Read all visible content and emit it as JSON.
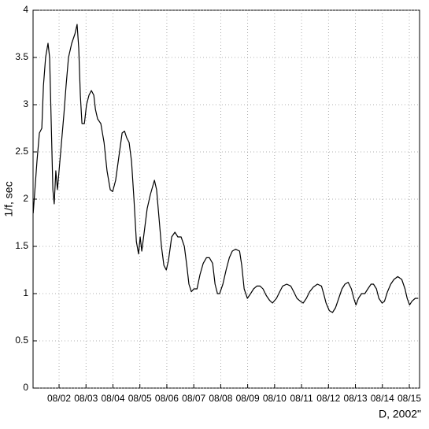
{
  "chart_data": {
    "type": "line",
    "x_label": "D,  2002\"",
    "y_label": "1/f, sec",
    "xlim": [
      1.035,
      15.38
    ],
    "ylim": [
      0,
      4
    ],
    "xticks": [
      {
        "value": 2,
        "label": "08/02"
      },
      {
        "value": 3,
        "label": "08/03"
      },
      {
        "value": 4,
        "label": "08/04"
      },
      {
        "value": 5,
        "label": "08/05"
      },
      {
        "value": 6,
        "label": "08/06"
      },
      {
        "value": 7,
        "label": "08/07"
      },
      {
        "value": 8,
        "label": "08/08"
      },
      {
        "value": 9,
        "label": "08/09"
      },
      {
        "value": 10,
        "label": "08/10"
      },
      {
        "value": 11,
        "label": "08/11"
      },
      {
        "value": 12,
        "label": "08/12"
      },
      {
        "value": 13,
        "label": "08/13"
      },
      {
        "value": 14,
        "label": "08/14"
      },
      {
        "value": 15,
        "label": "08/15"
      }
    ],
    "yticks": [
      0,
      0.5,
      1,
      1.5,
      2,
      2.5,
      3,
      3.5,
      4
    ],
    "grid": true,
    "color": "#000000",
    "x": [
      1.04,
      1.18,
      1.27,
      1.36,
      1.42,
      1.5,
      1.59,
      1.65,
      1.71,
      1.77,
      1.82,
      1.88,
      1.94,
      2.0,
      2.09,
      2.18,
      2.26,
      2.35,
      2.47,
      2.59,
      2.67,
      2.73,
      2.79,
      2.85,
      2.94,
      3.02,
      3.11,
      3.2,
      3.29,
      3.35,
      3.43,
      3.55,
      3.67,
      3.78,
      3.9,
      3.99,
      4.1,
      4.22,
      4.34,
      4.43,
      4.51,
      4.6,
      4.69,
      4.78,
      4.87,
      4.95,
      5.01,
      5.07,
      5.16,
      5.27,
      5.39,
      5.54,
      5.62,
      5.71,
      5.8,
      5.89,
      5.98,
      6.06,
      6.18,
      6.3,
      6.41,
      6.53,
      6.65,
      6.74,
      6.82,
      6.91,
      7.0,
      7.12,
      7.23,
      7.35,
      7.47,
      7.58,
      7.7,
      7.79,
      7.88,
      7.96,
      8.08,
      8.2,
      8.32,
      8.43,
      8.55,
      8.7,
      8.78,
      8.87,
      8.99,
      9.11,
      9.22,
      9.34,
      9.46,
      9.57,
      9.69,
      9.81,
      9.92,
      10.07,
      10.19,
      10.3,
      10.45,
      10.6,
      10.71,
      10.83,
      10.95,
      11.06,
      11.18,
      11.3,
      11.44,
      11.59,
      11.74,
      11.82,
      11.91,
      12.03,
      12.15,
      12.26,
      12.38,
      12.5,
      12.61,
      12.73,
      12.85,
      12.94,
      13.02,
      13.11,
      13.23,
      13.35,
      13.46,
      13.58,
      13.67,
      13.78,
      13.87,
      13.99,
      14.08,
      14.19,
      14.31,
      14.43,
      14.57,
      14.72,
      14.84,
      14.92,
      15.01,
      15.1,
      15.22,
      15.33
    ],
    "values": [
      1.85,
      2.4,
      2.7,
      2.75,
      3.2,
      3.5,
      3.65,
      3.5,
      2.8,
      2.1,
      1.95,
      2.3,
      2.1,
      2.3,
      2.6,
      2.9,
      3.2,
      3.5,
      3.65,
      3.75,
      3.85,
      3.6,
      3.1,
      2.8,
      2.8,
      3.0,
      3.1,
      3.15,
      3.1,
      2.95,
      2.85,
      2.8,
      2.6,
      2.3,
      2.1,
      2.08,
      2.2,
      2.45,
      2.7,
      2.72,
      2.65,
      2.6,
      2.4,
      2.0,
      1.55,
      1.42,
      1.6,
      1.45,
      1.65,
      1.9,
      2.05,
      2.2,
      2.1,
      1.8,
      1.5,
      1.3,
      1.25,
      1.35,
      1.6,
      1.65,
      1.6,
      1.6,
      1.5,
      1.3,
      1.1,
      1.02,
      1.05,
      1.05,
      1.2,
      1.32,
      1.38,
      1.38,
      1.32,
      1.1,
      1.0,
      1.0,
      1.1,
      1.25,
      1.38,
      1.45,
      1.47,
      1.45,
      1.3,
      1.05,
      0.95,
      1.0,
      1.05,
      1.08,
      1.08,
      1.05,
      0.98,
      0.93,
      0.9,
      0.95,
      1.02,
      1.08,
      1.1,
      1.08,
      1.02,
      0.95,
      0.92,
      0.9,
      0.95,
      1.02,
      1.07,
      1.1,
      1.08,
      1.0,
      0.9,
      0.82,
      0.8,
      0.85,
      0.95,
      1.05,
      1.1,
      1.12,
      1.05,
      0.95,
      0.88,
      0.95,
      1.0,
      1.0,
      1.05,
      1.1,
      1.1,
      1.05,
      0.95,
      0.9,
      0.92,
      1.02,
      1.1,
      1.15,
      1.18,
      1.15,
      1.05,
      0.95,
      0.88,
      0.92,
      0.95,
      0.95
    ]
  }
}
